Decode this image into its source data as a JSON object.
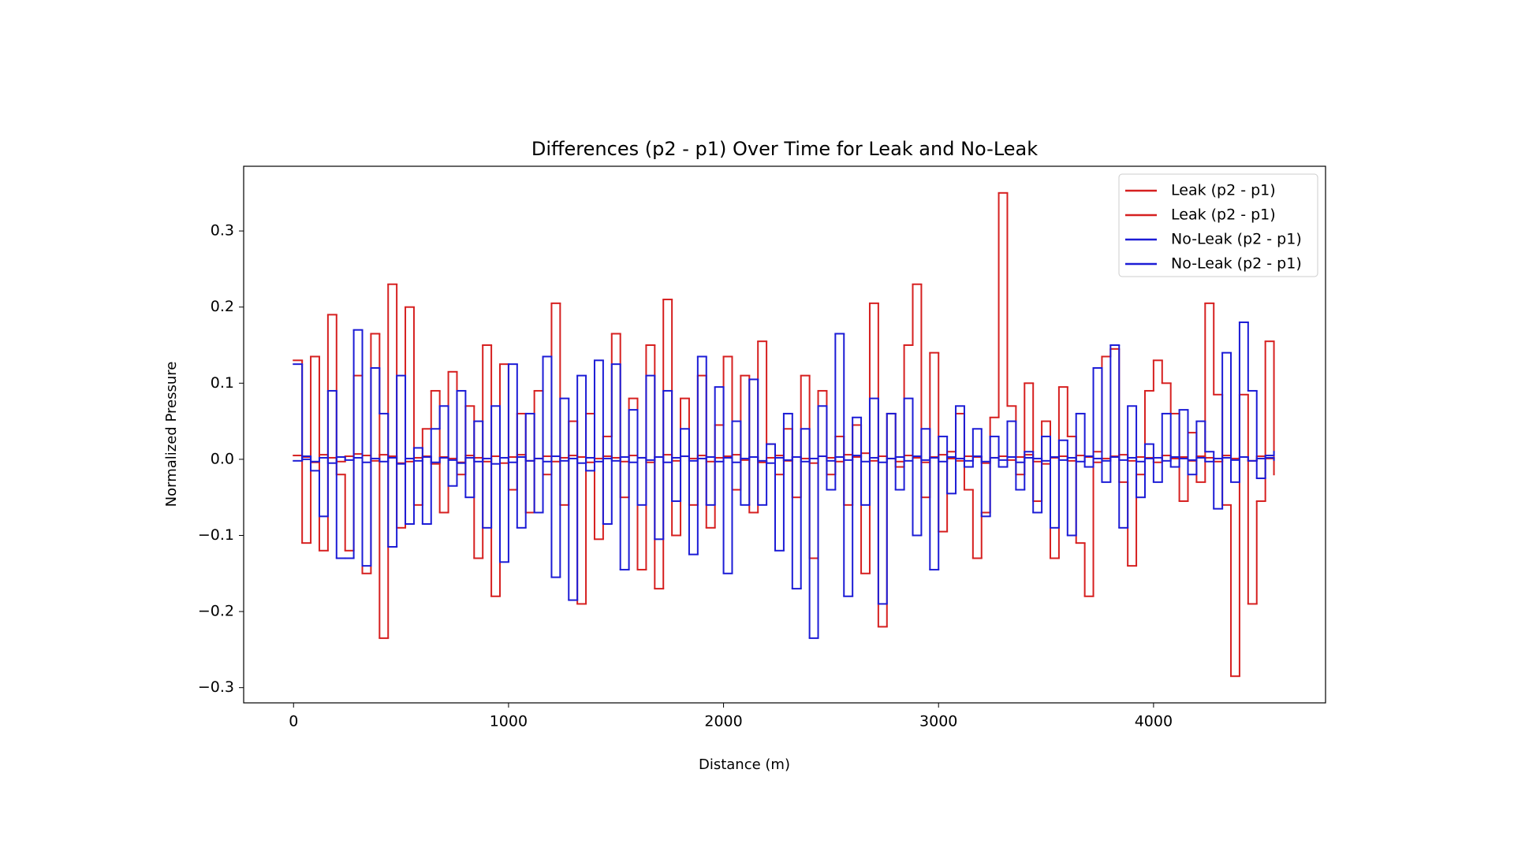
{
  "chart_data": {
    "type": "line",
    "drawstyle": "steps-post",
    "title": "Differences (p2 - p1) Over Time for Leak and No-Leak",
    "x_label": "Distance (m)",
    "y_label": "Normalized Pressure",
    "xlim": [
      -232,
      4800
    ],
    "ylim": [
      -0.32,
      0.385
    ],
    "xticks": [
      0,
      1000,
      2000,
      3000,
      4000
    ],
    "yticks": [
      {
        "value": -0.3,
        "label": "−0.3"
      },
      {
        "value": -0.2,
        "label": "−0.2"
      },
      {
        "value": -0.1,
        "label": "−0.1"
      },
      {
        "value": 0,
        "label": "0.0"
      },
      0.1,
      0.2,
      0.3
    ],
    "legend": "upper right",
    "x": [
      0,
      40,
      80,
      120,
      160,
      200,
      240,
      280,
      320,
      360,
      400,
      440,
      480,
      520,
      560,
      600,
      640,
      680,
      720,
      760,
      800,
      840,
      880,
      920,
      960,
      1000,
      1040,
      1080,
      1120,
      1160,
      1200,
      1240,
      1280,
      1320,
      1360,
      1400,
      1440,
      1480,
      1520,
      1560,
      1600,
      1640,
      1680,
      1720,
      1760,
      1800,
      1840,
      1880,
      1920,
      1960,
      2000,
      2040,
      2080,
      2120,
      2160,
      2200,
      2240,
      2280,
      2320,
      2360,
      2400,
      2440,
      2480,
      2520,
      2560,
      2600,
      2640,
      2680,
      2720,
      2760,
      2800,
      2840,
      2880,
      2920,
      2960,
      3000,
      3040,
      3080,
      3120,
      3160,
      3200,
      3240,
      3280,
      3320,
      3360,
      3400,
      3440,
      3480,
      3520,
      3560,
      3600,
      3640,
      3680,
      3720,
      3760,
      3800,
      3840,
      3880,
      3920,
      3960,
      4000,
      4040,
      4080,
      4120,
      4160,
      4200,
      4240,
      4280,
      4320,
      4360,
      4400,
      4440,
      4480,
      4520,
      4560
    ],
    "series": [
      {
        "name": "Leak (p2 - p1)",
        "color": "#d62020",
        "values": [
          0.13,
          -0.11,
          0.135,
          -0.12,
          0.19,
          -0.02,
          -0.12,
          0.11,
          -0.15,
          0.165,
          -0.235,
          0.23,
          -0.09,
          0.2,
          -0.06,
          0.04,
          0.09,
          -0.07,
          0.115,
          -0.02,
          0.07,
          -0.13,
          0.15,
          -0.18,
          0.125,
          -0.04,
          0.06,
          -0.07,
          0.09,
          -0.02,
          0.205,
          -0.06,
          0.05,
          -0.19,
          0.06,
          -0.105,
          0.03,
          0.165,
          -0.05,
          0.08,
          -0.145,
          0.15,
          -0.17,
          0.21,
          -0.1,
          0.08,
          -0.06,
          0.11,
          -0.09,
          0.045,
          0.135,
          -0.04,
          0.11,
          -0.07,
          0.155,
          0.02,
          -0.02,
          0.04,
          -0.05,
          0.11,
          -0.13,
          0.09,
          -0.02,
          0.03,
          -0.06,
          0.045,
          -0.15,
          0.205,
          -0.22,
          0.06,
          -0.01,
          0.15,
          0.23,
          -0.05,
          0.14,
          -0.095,
          0.01,
          0.06,
          -0.04,
          -0.13,
          -0.07,
          0.055,
          0.35,
          0.07,
          -0.02,
          0.1,
          -0.055,
          0.05,
          -0.13,
          0.095,
          0.03,
          -0.11,
          -0.18,
          0.01,
          0.135,
          0.145,
          -0.03,
          -0.14,
          -0.02,
          0.09,
          0.13,
          0.1,
          0.06,
          -0.055,
          0.035,
          -0.03,
          0.205,
          0.085,
          -0.06,
          -0.285,
          0.085,
          -0.19,
          -0.055,
          0.155,
          -0.02
        ]
      },
      {
        "name": "Leak (p2 - p1)",
        "color": "#d62020",
        "values": [
          0.005,
          0.003,
          -0.004,
          0.006,
          0.002,
          -0.003,
          0.004,
          0.007,
          0.005,
          -0.002,
          0.006,
          0.004,
          -0.005,
          -0.003,
          0.002,
          0.004,
          -0.006,
          0.003,
          0.001,
          -0.004,
          0.005,
          0.002,
          -0.003,
          0.004,
          -0.005,
          0.003,
          0.006,
          -0.002,
          0.001,
          0.004,
          -0.003,
          0.002,
          0.005,
          0.003,
          -0.004,
          0.001,
          0.004,
          0.002,
          -0.003,
          0.005,
          0.002,
          -0.004,
          0.003,
          0.006,
          -0.002,
          0.004,
          0.001,
          0.005,
          -0.003,
          0.002,
          0.004,
          0.006,
          -0.001,
          0.003,
          -0.004,
          0.002,
          0.005,
          -0.002,
          0.003,
          0.001,
          -0.005,
          0.004,
          0.002,
          -0.003,
          0.006,
          0.003,
          0.008,
          -0.002,
          0.004,
          0.001,
          -0.003,
          0.005,
          0.002,
          -0.004,
          0.003,
          0.006,
          0.001,
          -0.002,
          0.004,
          0.003,
          -0.005,
          0.002,
          0.004,
          -0.001,
          0.003,
          0.006,
          -0.003,
          -0.006,
          0.002,
          0.004,
          -0.002,
          0.005,
          0.003,
          -0.004,
          0.001,
          0.004,
          0.006,
          -0.002,
          0.003,
          0.002,
          -0.004,
          0.005,
          0.001,
          0.003,
          -0.002,
          0.004,
          0.002,
          -0.003,
          0.005,
          0.001,
          0.003,
          -0.002,
          0.004,
          0.001,
          0.002
        ]
      },
      {
        "name": "No-Leak (p2 - p1)",
        "color": "#1c1cd6",
        "values": [
          0.125,
          0.0,
          -0.015,
          -0.075,
          0.09,
          -0.13,
          -0.13,
          0.17,
          -0.14,
          0.12,
          0.06,
          -0.115,
          0.11,
          -0.085,
          0.015,
          -0.085,
          0.04,
          0.07,
          -0.035,
          0.09,
          -0.05,
          0.05,
          -0.09,
          0.07,
          -0.135,
          0.125,
          -0.09,
          0.06,
          -0.07,
          0.135,
          -0.155,
          0.08,
          -0.185,
          0.11,
          -0.015,
          0.13,
          -0.085,
          0.125,
          -0.145,
          0.065,
          -0.06,
          0.11,
          -0.105,
          0.09,
          -0.055,
          0.04,
          -0.125,
          0.135,
          -0.06,
          0.095,
          -0.15,
          0.05,
          -0.06,
          0.105,
          -0.06,
          0.02,
          -0.12,
          0.06,
          -0.17,
          0.04,
          -0.235,
          0.07,
          -0.04,
          0.165,
          -0.18,
          0.055,
          -0.06,
          0.08,
          -0.19,
          0.06,
          -0.04,
          0.08,
          -0.1,
          0.04,
          -0.145,
          0.03,
          -0.045,
          0.07,
          -0.01,
          0.04,
          -0.075,
          0.03,
          -0.01,
          0.05,
          -0.04,
          0.01,
          -0.07,
          0.03,
          -0.09,
          0.025,
          -0.1,
          0.06,
          -0.01,
          0.12,
          -0.03,
          0.15,
          -0.09,
          0.07,
          -0.05,
          0.02,
          -0.03,
          0.06,
          -0.01,
          0.065,
          -0.02,
          0.05,
          0.01,
          -0.065,
          0.14,
          -0.03,
          0.18,
          0.09,
          -0.025,
          0.005,
          0.01
        ]
      },
      {
        "name": "No-Leak (p2 - p1)",
        "color": "#1c1cd6",
        "values": [
          -0.002,
          0.004,
          -0.003,
          0.002,
          -0.005,
          0.003,
          -0.001,
          0.002,
          -0.004,
          0.001,
          -0.003,
          0.002,
          -0.006,
          0.001,
          -0.002,
          0.003,
          -0.004,
          0.002,
          -0.001,
          -0.005,
          0.002,
          -0.003,
          0.001,
          -0.006,
          0.002,
          -0.004,
          0.003,
          -0.002,
          0.001,
          -0.003,
          0.004,
          -0.002,
          0.001,
          -0.005,
          0.002,
          -0.003,
          0.001,
          -0.002,
          0.003,
          -0.004,
          0.002,
          -0.001,
          0.003,
          -0.004,
          0.002,
          0.004,
          -0.002,
          0.001,
          0.003,
          -0.003,
          0.002,
          -0.004,
          0.001,
          0.003,
          -0.002,
          -0.005,
          0.002,
          -0.001,
          0.003,
          -0.003,
          0.001,
          0.004,
          -0.002,
          0.003,
          -0.001,
          0.005,
          -0.003,
          0.002,
          -0.004,
          0.001,
          0.003,
          -0.002,
          0.004,
          -0.001,
          0.002,
          -0.003,
          0.003,
          0.001,
          -0.002,
          0.004,
          -0.003,
          0.002,
          -0.001,
          0.003,
          -0.004,
          0.002,
          0.001,
          -0.002,
          0.003,
          -0.001,
          0.002,
          -0.003,
          0.004,
          0.001,
          -0.002,
          0.003,
          -0.001,
          0.002,
          -0.003,
          0.001,
          0.002,
          -0.002,
          0.003,
          0.001,
          -0.001,
          0.002,
          -0.003,
          0.001,
          0.002,
          -0.001,
          0.003,
          -0.002,
          0.001,
          0.002,
          -0.001
        ]
      }
    ]
  }
}
